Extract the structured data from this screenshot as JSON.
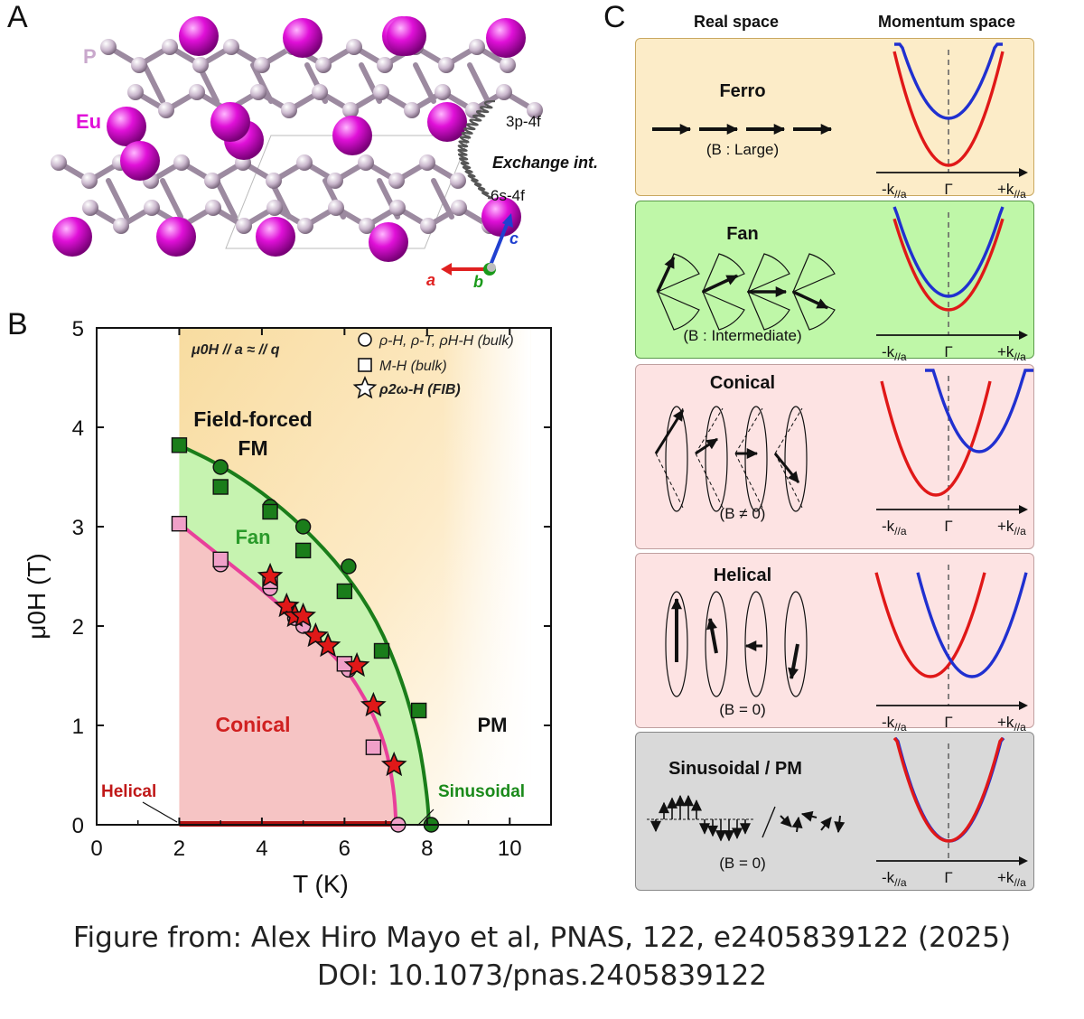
{
  "figure": {
    "panel_labels": {
      "a": "A",
      "b": "B",
      "c": "C"
    },
    "caption_line1": "Figure from: Alex Hiro Mayo et al, PNAS, 122, e2405839122 (2025)",
    "caption_line2": "DOI:  10.1073/pnas.2405839122"
  },
  "panel_a": {
    "atom_p": "P",
    "atom_eu": "Eu",
    "exchange_1": "3p-4f",
    "exchange_label": "Exchange int.",
    "exchange_2": "6s-4f",
    "axis_a": "a",
    "axis_b": "b",
    "axis_c": "c",
    "colors": {
      "eu": "#e010d8",
      "p": "#c9b6cc",
      "axis_a": "#e02020",
      "axis_b": "#1a9a1a",
      "axis_c": "#2040d0"
    }
  },
  "panel_b": {
    "legend_title": "μ0H // a ≈ // q",
    "legend": [
      {
        "marker": "circle",
        "label": "ρ-H, ρ-T, ρH-H (bulk)"
      },
      {
        "marker": "square",
        "label": "M-H (bulk)"
      },
      {
        "marker": "star",
        "label": "ρ2ω-H (FIB)"
      }
    ],
    "region_labels": {
      "fffm_1": "Field-forced",
      "fffm_2": "FM",
      "fan": "Fan",
      "conical": "Conical",
      "pm": "PM",
      "helical": "Helical",
      "sinusoidal": "Sinusoidal"
    }
  },
  "chart_data": {
    "type": "scatter",
    "xlabel": "T (K)",
    "ylabel": "μ0H (T)",
    "xlim": [
      0,
      11
    ],
    "ylim": [
      0,
      5
    ],
    "xticks": [
      "0",
      "2",
      "4",
      "6",
      "8",
      "10"
    ],
    "yticks": [
      "0",
      "1",
      "2",
      "3",
      "4",
      "5"
    ],
    "series": [
      {
        "name": "ρ-H, ρ-T, ρH-H (bulk)",
        "marker": "circle",
        "color": "#1a7d1a",
        "points": [
          [
            3.0,
            3.6
          ],
          [
            4.2,
            3.2
          ],
          [
            5.0,
            3.0
          ],
          [
            6.1,
            2.6
          ],
          [
            8.1,
            0.0
          ]
        ]
      },
      {
        "name": "ρ-H, ρ-T, ρH-H (bulk)",
        "marker": "circle",
        "color": "#f0a0c8",
        "points": [
          [
            3.0,
            2.62
          ],
          [
            4.2,
            2.38
          ],
          [
            4.8,
            2.08
          ],
          [
            5.0,
            2.0
          ],
          [
            6.1,
            1.56
          ],
          [
            7.3,
            0.0
          ]
        ]
      },
      {
        "name": "M-H (bulk)",
        "marker": "square",
        "color": "#1a7d1a",
        "points": [
          [
            2.0,
            3.82
          ],
          [
            3.0,
            3.4
          ],
          [
            4.2,
            3.15
          ],
          [
            5.0,
            2.76
          ],
          [
            6.0,
            2.35
          ],
          [
            6.9,
            1.75
          ],
          [
            7.8,
            1.15
          ]
        ]
      },
      {
        "name": "M-H (bulk)",
        "marker": "square",
        "color": "#f0a0c8",
        "points": [
          [
            2.0,
            3.03
          ],
          [
            3.0,
            2.67
          ],
          [
            4.2,
            2.45
          ],
          [
            6.0,
            1.62
          ],
          [
            6.7,
            0.78
          ]
        ]
      },
      {
        "name": "ρ2ω-H (FIB)",
        "marker": "star",
        "color": "#e01818",
        "points": [
          [
            4.2,
            2.5
          ],
          [
            4.6,
            2.2
          ],
          [
            4.8,
            2.1
          ],
          [
            5.0,
            2.1
          ],
          [
            5.3,
            1.9
          ],
          [
            5.6,
            1.8
          ],
          [
            6.3,
            1.6
          ],
          [
            6.7,
            1.2
          ],
          [
            7.2,
            0.6
          ]
        ]
      }
    ],
    "boundaries": [
      {
        "name": "upper",
        "color": "#1a7d1a",
        "points": [
          [
            2.0,
            3.82
          ],
          [
            3.0,
            3.62
          ],
          [
            4.0,
            3.35
          ],
          [
            5.0,
            3.0
          ],
          [
            6.0,
            2.55
          ],
          [
            6.8,
            2.05
          ],
          [
            7.4,
            1.45
          ],
          [
            7.8,
            0.85
          ],
          [
            8.0,
            0.3
          ],
          [
            8.05,
            0.0
          ]
        ]
      },
      {
        "name": "lower",
        "color": "#e8409a",
        "points": [
          [
            2.0,
            3.03
          ],
          [
            3.0,
            2.7
          ],
          [
            4.0,
            2.37
          ],
          [
            5.0,
            2.0
          ],
          [
            6.0,
            1.6
          ],
          [
            6.6,
            1.2
          ],
          [
            7.0,
            0.8
          ],
          [
            7.2,
            0.35
          ],
          [
            7.25,
            0.0
          ]
        ]
      }
    ]
  },
  "panel_c": {
    "col_real": "Real space",
    "col_momentum": "Momentum space",
    "k_minus": "-k",
    "k_gamma": "Γ",
    "k_plus": "+k",
    "k_sub": "//a",
    "rows": [
      {
        "title": "Ferro",
        "field": "(B : Large)",
        "bg": "#fcecc8"
      },
      {
        "title": "Fan",
        "field": "(B : Intermediate)",
        "bg": "#bff7a8"
      },
      {
        "title": "Conical",
        "field": "(B ≠ 0)",
        "bg": "#fde3e3"
      },
      {
        "title": "Helical",
        "field": "(B = 0)",
        "bg": "#fde3e3"
      },
      {
        "title": "Sinusoidal / PM",
        "field": "(B = 0)",
        "bg": "#d9d9d9"
      }
    ]
  }
}
